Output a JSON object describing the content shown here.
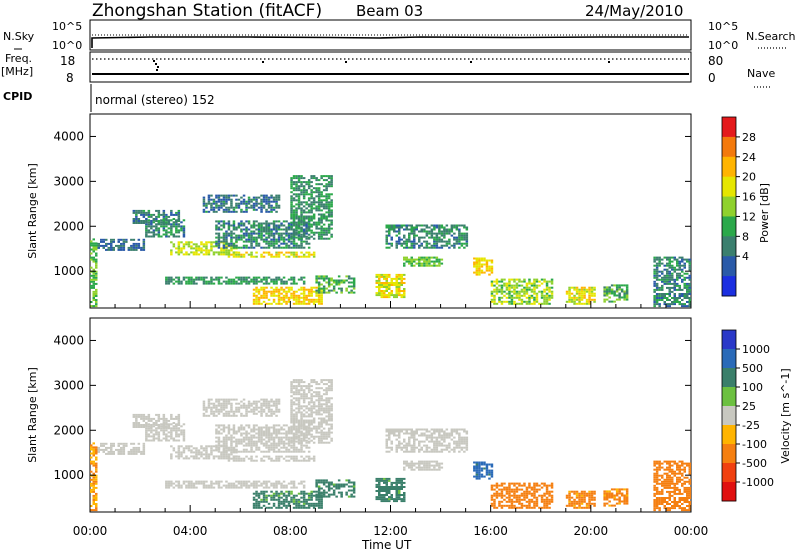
{
  "header": {
    "station": "Zhongshan Station (fitACF)",
    "beam": "Beam 03",
    "date": "24/May/2010"
  },
  "summary": {
    "nsky_label": "N.Sky",
    "nsearch_label": "N.Search",
    "count_ticks": [
      "10^5",
      "10^0"
    ],
    "freq_label": "Freq.",
    "freq_unit": "[MHz]",
    "freq_ticks": [
      "18",
      "8"
    ],
    "nave_label": "Nave",
    "nave_ticks": [
      "80",
      "0"
    ],
    "cpid_label": "CPID",
    "cpid_value": "normal (stereo) 152"
  },
  "axes": {
    "ylabel": "Slant Range [km]",
    "yticks": [
      "1000",
      "2000",
      "3000",
      "4000"
    ],
    "xticks": [
      "00:00",
      "04:00",
      "08:00",
      "12:00",
      "16:00",
      "20:00",
      "00:00"
    ],
    "xlabel": "Time UT"
  },
  "power_bar": {
    "label": "Power [dB]",
    "ticks": [
      "28",
      "24",
      "20",
      "16",
      "12",
      "8",
      "4"
    ],
    "colors": [
      "#e41a1c",
      "#f3790c",
      "#ffb400",
      "#e6e600",
      "#8fd12d",
      "#2ba84a",
      "#3b7f6e",
      "#2a5aa8",
      "#1b2fe0"
    ]
  },
  "velocity_bar": {
    "label": "Velocity [m s^-1]",
    "ticks": [
      "1000",
      "500",
      "100",
      "25",
      "-25",
      "-100",
      "-500",
      "-1000"
    ],
    "colors": [
      "#2a38c8",
      "#2a6ab8",
      "#3a7f6a",
      "#6cc040",
      "#c8c8c0",
      "#ffb400",
      "#f57f10",
      "#f04010",
      "#e01010"
    ]
  },
  "chart_data": {
    "type": "heatmap",
    "title": "Zhongshan Station (fitACF)",
    "xlabel": "Time UT",
    "ylabel": "Slant Range [km]",
    "xlim": [
      "00:00",
      "24:00"
    ],
    "ylim": [
      180,
      4500
    ],
    "panels": [
      "Power [dB]",
      "Velocity [m s^-1]"
    ],
    "echo_regions": [
      {
        "t": [
          0.0,
          0.3
        ],
        "r": [
          200,
          1700
        ],
        "p": 14,
        "v": -100
      },
      {
        "t": [
          0.3,
          2.2
        ],
        "r": [
          1450,
          1700
        ],
        "p": 6,
        "v": 10
      },
      {
        "t": [
          1.7,
          3.6
        ],
        "r": [
          2050,
          2350
        ],
        "p": 8,
        "v": 0
      },
      {
        "t": [
          2.2,
          3.8
        ],
        "r": [
          1750,
          2150
        ],
        "p": 9,
        "v": 0
      },
      {
        "t": [
          3.2,
          5.8
        ],
        "r": [
          1350,
          1650
        ],
        "p": 18,
        "v": 0
      },
      {
        "t": [
          4.5,
          7.5
        ],
        "r": [
          2300,
          2700
        ],
        "p": 7,
        "v": 0
      },
      {
        "t": [
          5.0,
          8.7
        ],
        "r": [
          1500,
          2100
        ],
        "p": 8,
        "v": 0
      },
      {
        "t": [
          5.5,
          8.9
        ],
        "r": [
          1300,
          1400
        ],
        "p": 20,
        "v": 0
      },
      {
        "t": [
          8.0,
          9.6
        ],
        "r": [
          1700,
          3100
        ],
        "p": 10,
        "v": 0
      },
      {
        "t": [
          3.0,
          8.5
        ],
        "r": [
          700,
          850
        ],
        "p": 10,
        "v": 0
      },
      {
        "t": [
          6.5,
          9.2
        ],
        "r": [
          250,
          650
        ],
        "p": 22,
        "v": 100
      },
      {
        "t": [
          9.0,
          10.5
        ],
        "r": [
          500,
          900
        ],
        "p": 12,
        "v": 100
      },
      {
        "t": [
          11.4,
          12.5
        ],
        "r": [
          400,
          900
        ],
        "p": 20,
        "v": 100
      },
      {
        "t": [
          11.8,
          15.0
        ],
        "r": [
          1500,
          2000
        ],
        "p": 9,
        "v": 0
      },
      {
        "t": [
          12.5,
          14.0
        ],
        "r": [
          1100,
          1300
        ],
        "p": 14,
        "v": 0
      },
      {
        "t": [
          15.3,
          16.0
        ],
        "r": [
          900,
          1300
        ],
        "p": 22,
        "v": 500
      },
      {
        "t": [
          16.0,
          18.5
        ],
        "r": [
          250,
          800
        ],
        "p": 16,
        "v": -250
      },
      {
        "t": [
          19.0,
          20.2
        ],
        "r": [
          250,
          650
        ],
        "p": 20,
        "v": -150
      },
      {
        "t": [
          20.5,
          21.5
        ],
        "r": [
          300,
          700
        ],
        "p": 12,
        "v": -150
      },
      {
        "t": [
          22.5,
          24.0
        ],
        "r": [
          200,
          1300
        ],
        "p": 8,
        "v": -200
      }
    ],
    "nave": 76,
    "grid": false
  }
}
